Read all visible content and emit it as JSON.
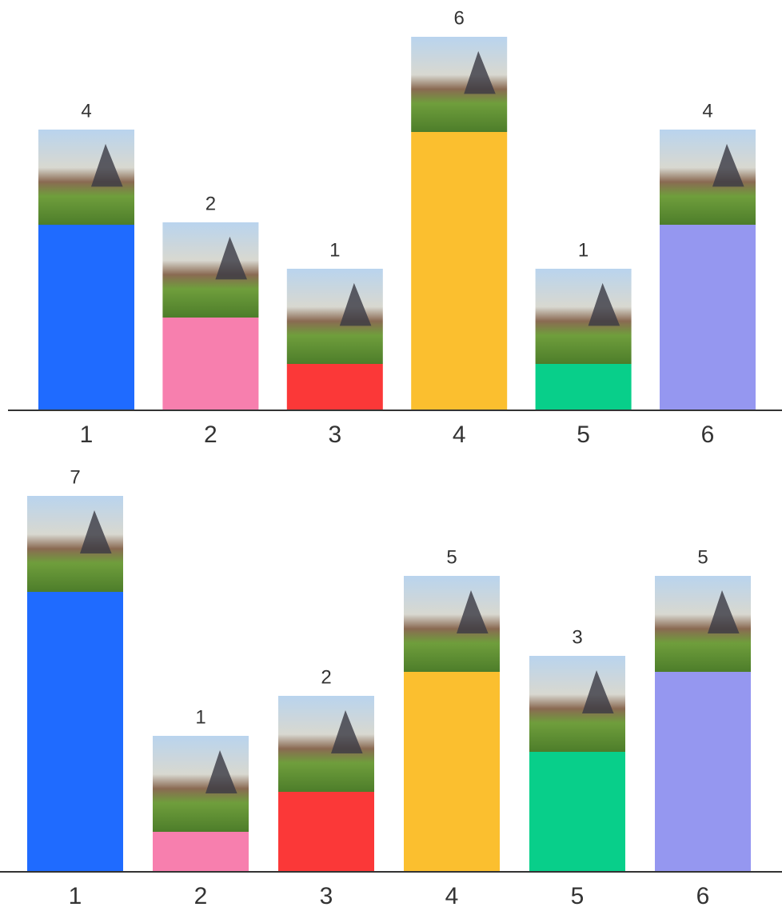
{
  "chart_data": [
    {
      "type": "bar",
      "categories": [
        "1",
        "2",
        "3",
        "4",
        "5",
        "6"
      ],
      "values": [
        4,
        2,
        1,
        6,
        1,
        4
      ],
      "colors": [
        "#1f6bff",
        "#f77fae",
        "#fb3838",
        "#fbbf2f",
        "#08cf8a",
        "#9597f0"
      ]
    },
    {
      "type": "bar",
      "categories": [
        "1",
        "2",
        "3",
        "4",
        "5",
        "6"
      ],
      "values": [
        7,
        1,
        2,
        5,
        3,
        5
      ],
      "colors": [
        "#1f6bff",
        "#f77fae",
        "#fb3838",
        "#fbbf2f",
        "#08cf8a",
        "#9597f0"
      ]
    }
  ]
}
